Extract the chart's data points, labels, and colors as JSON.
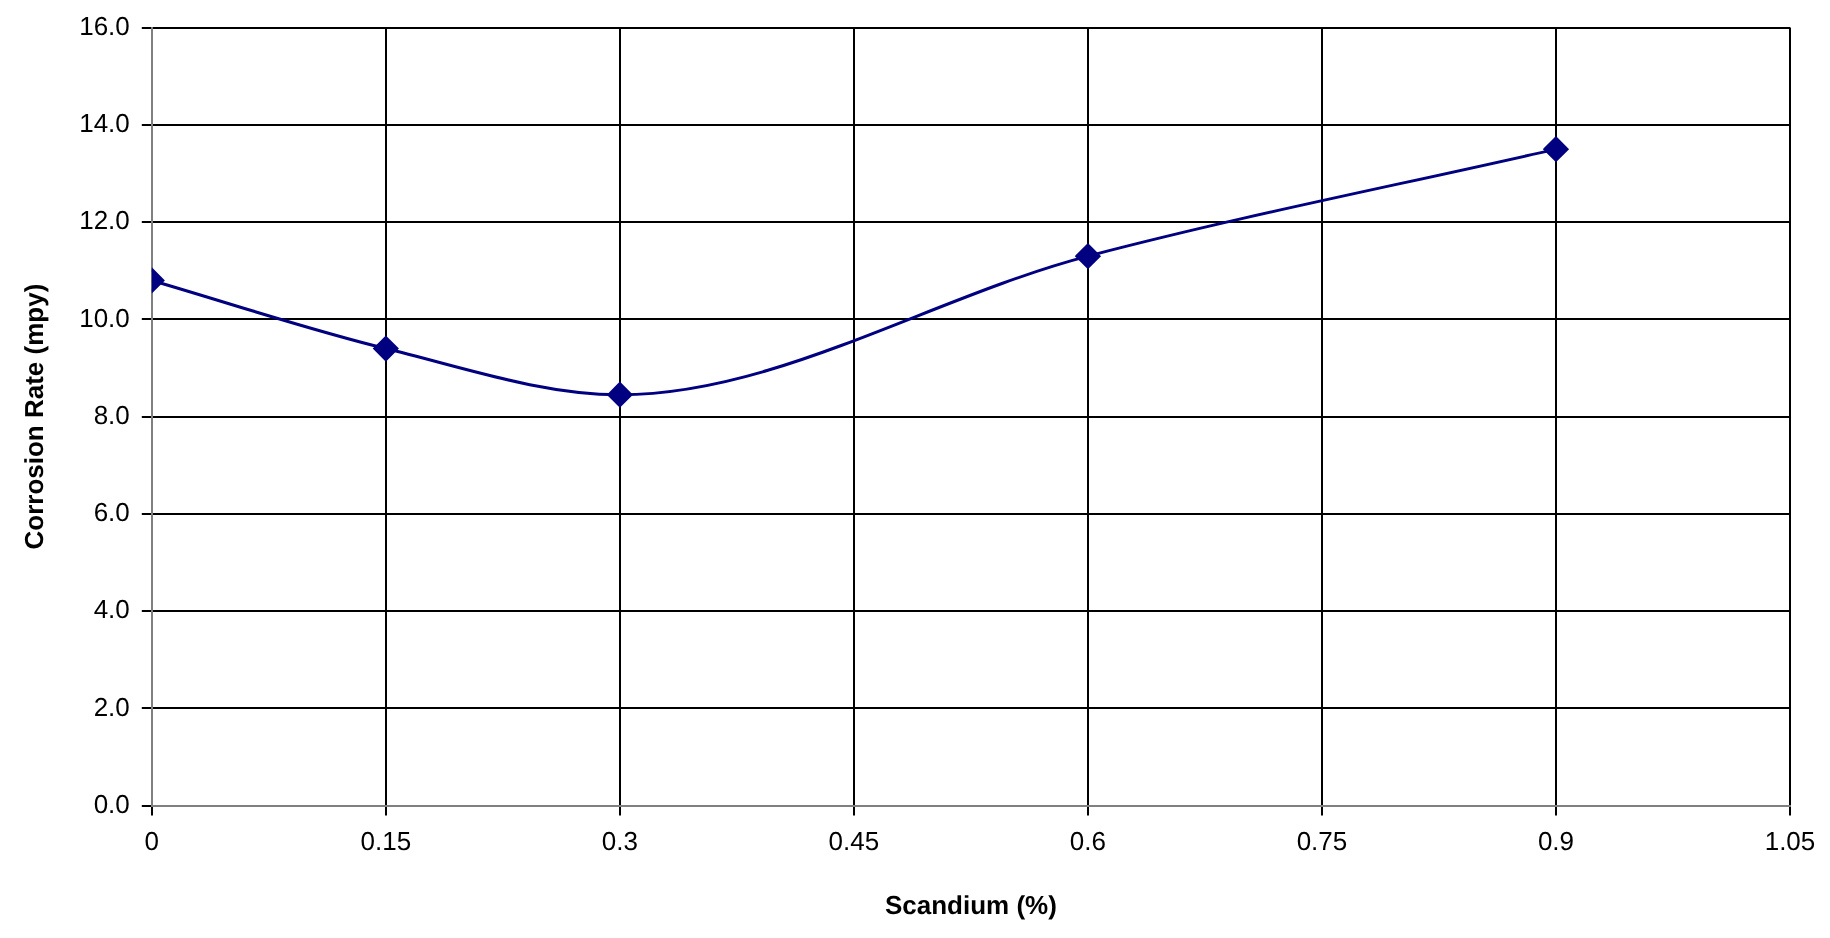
{
  "chart_data": {
    "type": "line",
    "xlabel": "Scandium (%)",
    "ylabel": "Corrosion Rate (mpy)",
    "x": [
      0,
      0.15,
      0.3,
      0.6,
      0.9
    ],
    "series": [
      {
        "color": "#000080",
        "values": [
          10.8,
          9.4,
          8.45,
          11.3,
          13.5
        ]
      }
    ],
    "xlim": [
      0,
      1.05
    ],
    "xticks": [
      0,
      0.15,
      0.3,
      0.45,
      0.6,
      0.75,
      0.9,
      1.05
    ],
    "ylim": [
      0,
      16
    ],
    "yticks": [
      {
        "value": 0,
        "label": "0.0"
      },
      {
        "value": 2,
        "label": "2.0"
      },
      {
        "value": 4,
        "label": "4.0"
      },
      {
        "value": 6,
        "label": "6.0"
      },
      {
        "value": 8,
        "label": "8.0"
      },
      {
        "value": 10,
        "label": "10.0"
      },
      {
        "value": 12,
        "label": "12.0"
      },
      {
        "value": 14,
        "label": "14.0"
      },
      {
        "value": 16,
        "label": "16.0"
      }
    ],
    "grid": true,
    "legend": false,
    "marker": "diamond",
    "line_style": "solid"
  }
}
